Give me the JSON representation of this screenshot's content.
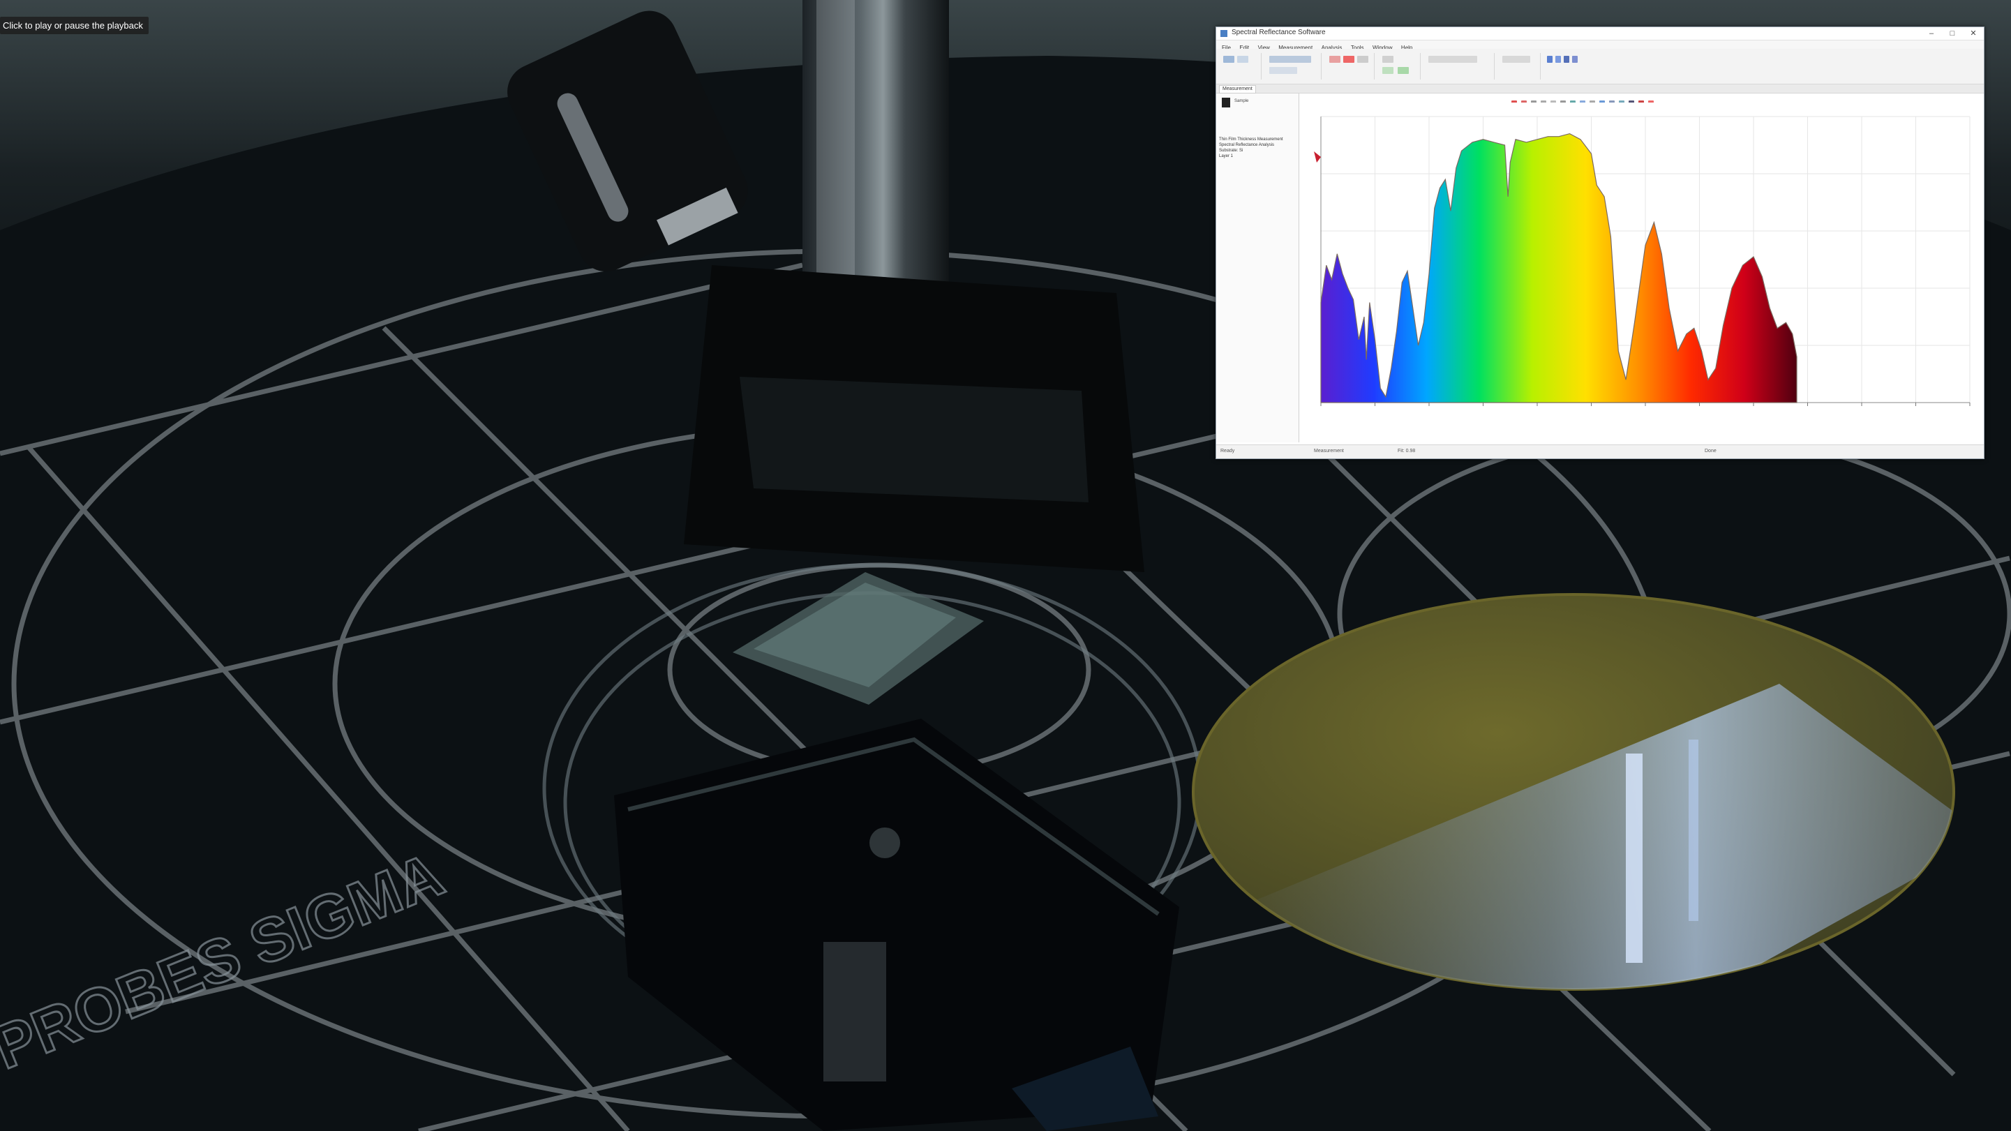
{
  "video": {
    "tooltip": "Click to play or pause the playback",
    "bench_marking": "PROBES SIGMA"
  },
  "app": {
    "title": "Spectral Reflectance Software",
    "menu": [
      "File",
      "Edit",
      "View",
      "Measurement",
      "Analysis",
      "Tools",
      "Window",
      "Help"
    ],
    "doc_tab": "Measurement",
    "sample_name": "Sample",
    "info_lines": [
      "Thin Film Thickness Measurement",
      "Spectral Reflectance Analysis",
      "Substrate: Si",
      "Layer 1"
    ],
    "status": [
      "Ready",
      "Measurement",
      "Fit: 0.98",
      "Done"
    ]
  },
  "chart_data": {
    "type": "area",
    "xlim": [
      400,
      1000
    ],
    "ylim": [
      0,
      100
    ],
    "xticks": [
      400,
      450,
      500,
      550,
      600,
      650,
      700,
      750,
      800,
      850,
      900,
      950,
      1000
    ],
    "xlabel": "",
    "ylabel": "",
    "grid": true,
    "points": [
      [
        400,
        35
      ],
      [
        405,
        48
      ],
      [
        410,
        43
      ],
      [
        415,
        52
      ],
      [
        420,
        45
      ],
      [
        425,
        40
      ],
      [
        430,
        36
      ],
      [
        435,
        22
      ],
      [
        440,
        30
      ],
      [
        442,
        15
      ],
      [
        445,
        35
      ],
      [
        450,
        22
      ],
      [
        455,
        5
      ],
      [
        460,
        2
      ],
      [
        465,
        12
      ],
      [
        470,
        25
      ],
      [
        475,
        42
      ],
      [
        480,
        46
      ],
      [
        485,
        33
      ],
      [
        490,
        20
      ],
      [
        495,
        28
      ],
      [
        500,
        45
      ],
      [
        505,
        68
      ],
      [
        510,
        75
      ],
      [
        515,
        78
      ],
      [
        520,
        67
      ],
      [
        525,
        82
      ],
      [
        530,
        88
      ],
      [
        540,
        91
      ],
      [
        550,
        92
      ],
      [
        560,
        91
      ],
      [
        570,
        90
      ],
      [
        573,
        72
      ],
      [
        575,
        84
      ],
      [
        580,
        92
      ],
      [
        590,
        91
      ],
      [
        600,
        92
      ],
      [
        610,
        93
      ],
      [
        620,
        93
      ],
      [
        630,
        94
      ],
      [
        640,
        92
      ],
      [
        650,
        87
      ],
      [
        655,
        76
      ],
      [
        662,
        72
      ],
      [
        668,
        58
      ],
      [
        675,
        18
      ],
      [
        682,
        8
      ],
      [
        690,
        28
      ],
      [
        700,
        55
      ],
      [
        708,
        63
      ],
      [
        715,
        52
      ],
      [
        722,
        33
      ],
      [
        730,
        18
      ],
      [
        738,
        24
      ],
      [
        745,
        26
      ],
      [
        752,
        18
      ],
      [
        758,
        8
      ],
      [
        765,
        12
      ],
      [
        772,
        27
      ],
      [
        780,
        40
      ],
      [
        790,
        48
      ],
      [
        800,
        51
      ],
      [
        808,
        44
      ],
      [
        815,
        33
      ],
      [
        822,
        26
      ],
      [
        830,
        28
      ],
      [
        836,
        24
      ],
      [
        840,
        16
      ]
    ],
    "colors": [
      "#5a1fd0",
      "#1f3cff",
      "#00a6ff",
      "#00e060",
      "#b8f000",
      "#ffe000",
      "#ff9000",
      "#ff2a00",
      "#d00018",
      "#500010"
    ]
  }
}
